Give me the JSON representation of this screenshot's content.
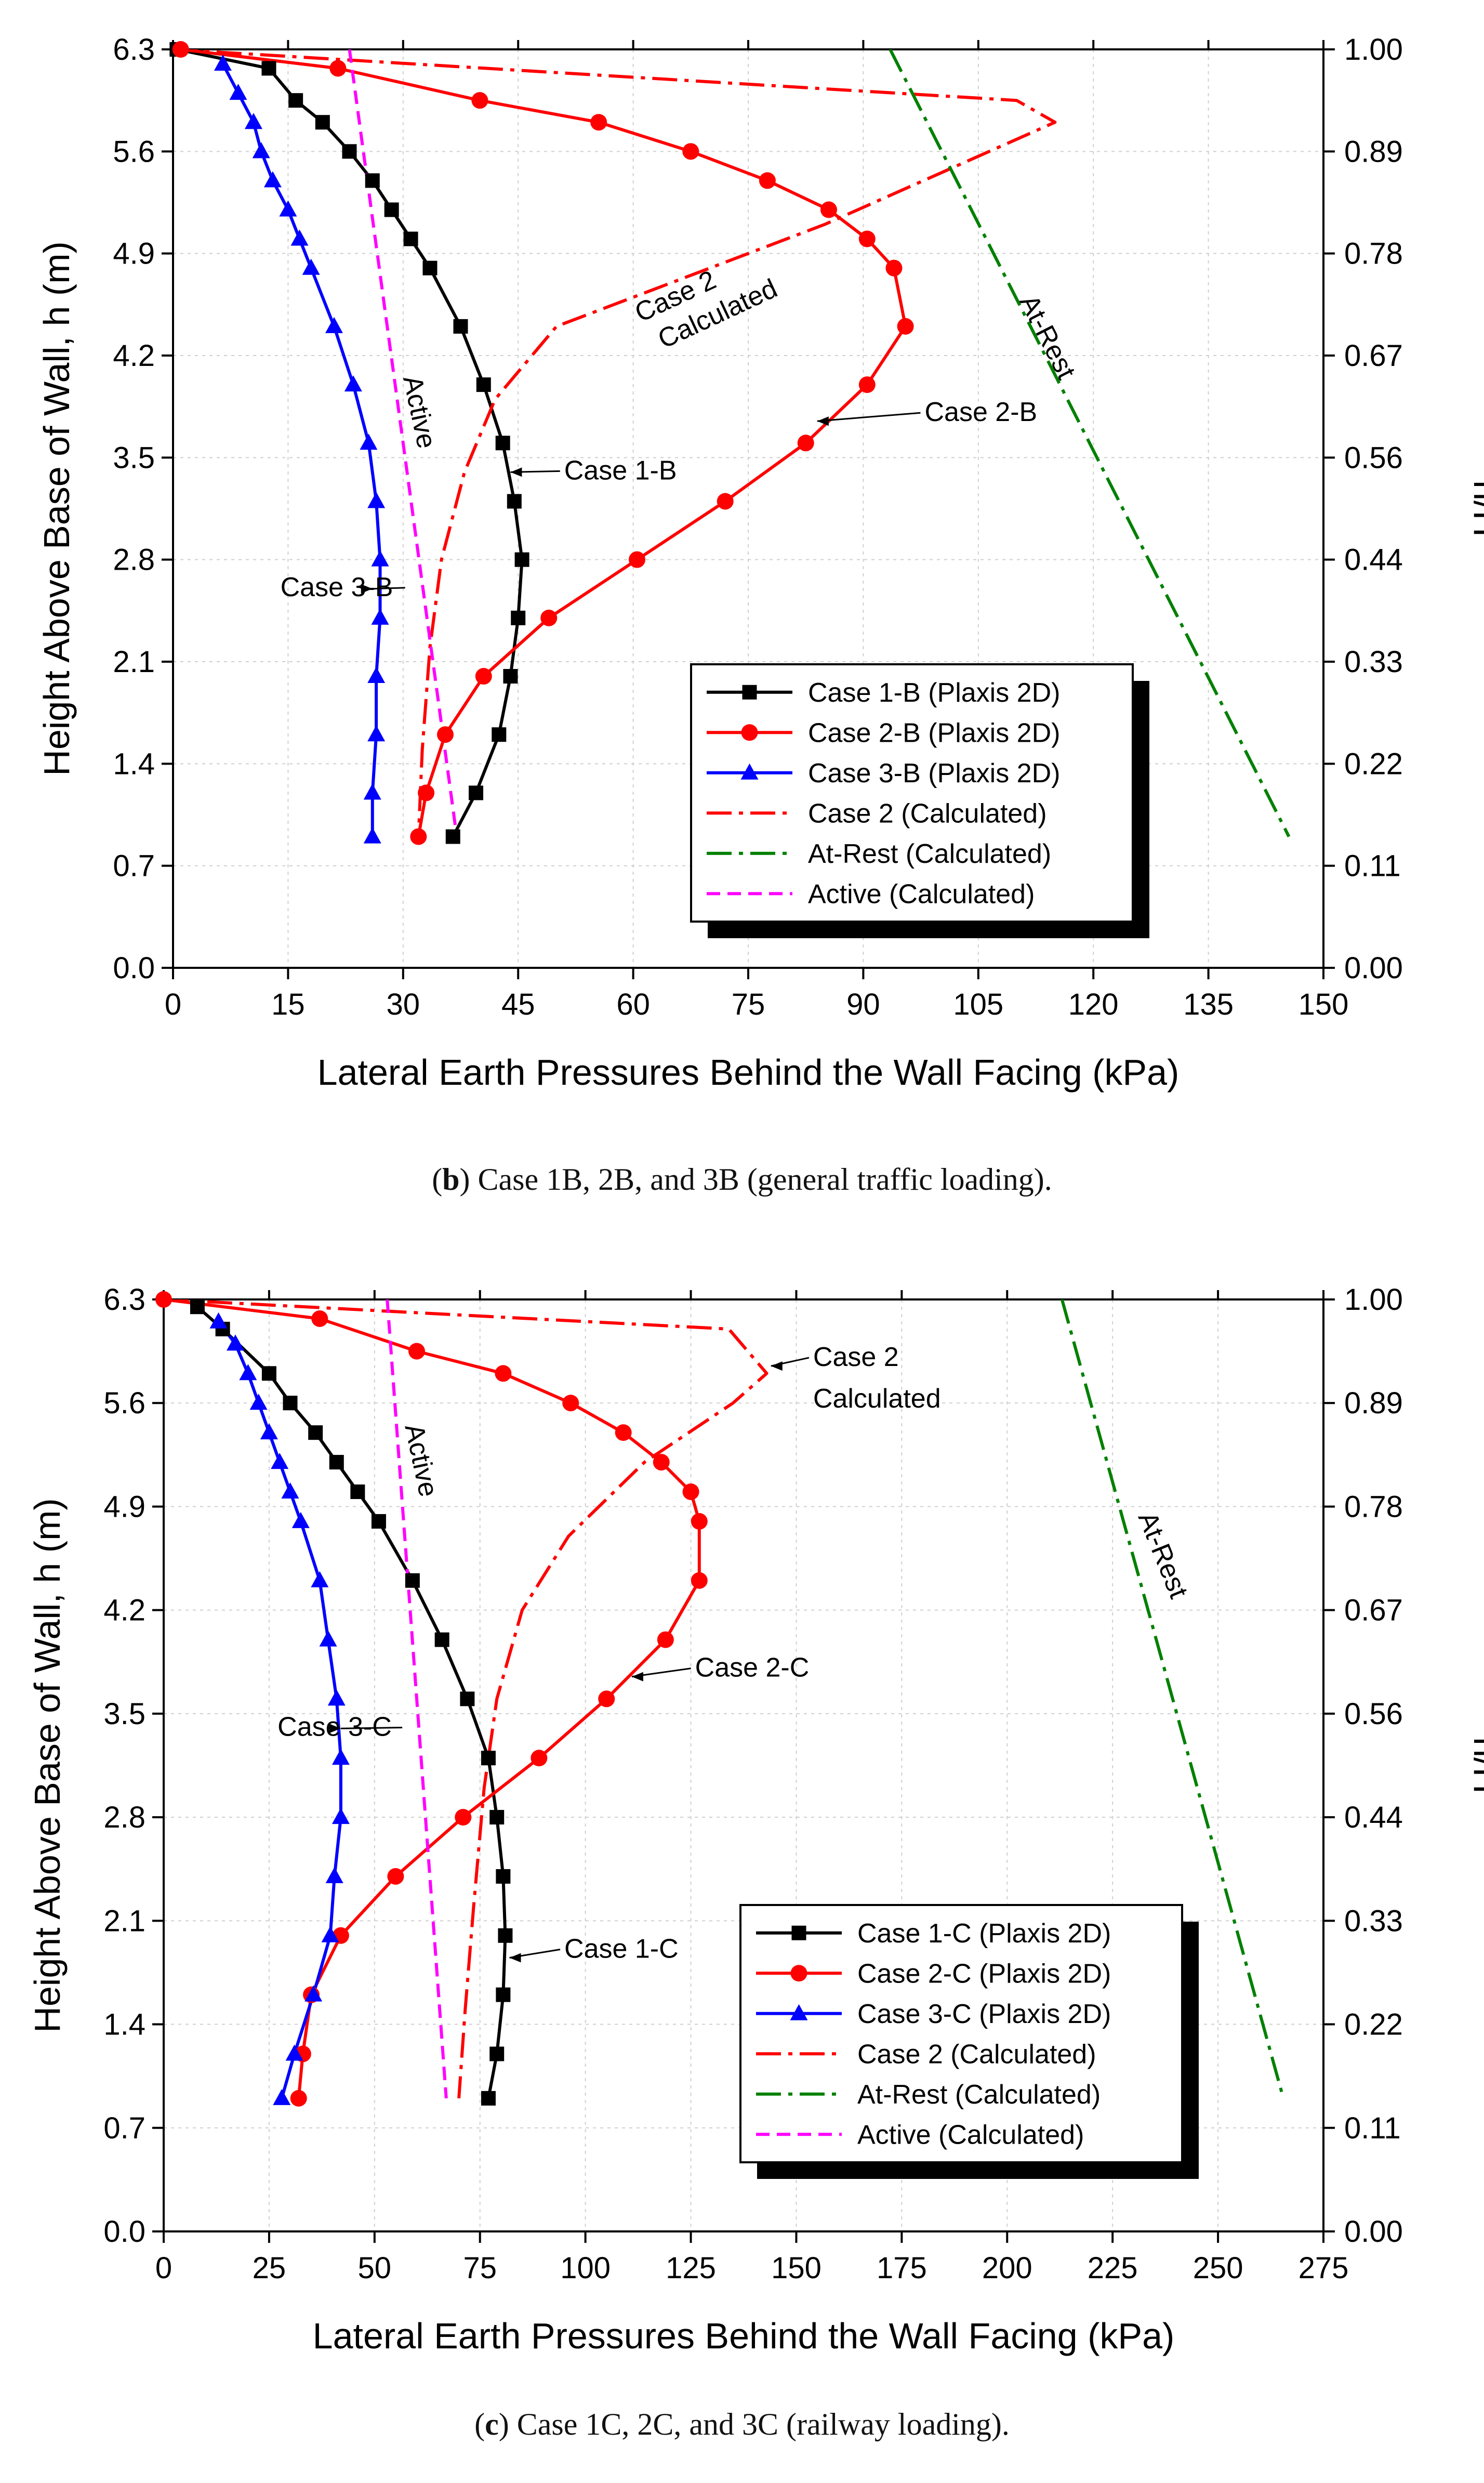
{
  "chart_data": [
    {
      "type": "line",
      "panel": "b",
      "caption": {
        "letter": "b",
        "text": "Case 1B, 2B, and 3B (general traffic loading)."
      },
      "xlabel": "Lateral Earth Pressures Behind the Wall Facing (kPa)",
      "ylabel": "Height Above Base of Wall, h (m)",
      "y2label": "h/H",
      "xlim": [
        0,
        150
      ],
      "ylim": [
        0,
        6.3
      ],
      "xticks": [
        0,
        15,
        30,
        45,
        60,
        75,
        90,
        105,
        120,
        135,
        150
      ],
      "yticks": [
        0.0,
        0.7,
        1.4,
        2.1,
        2.8,
        3.5,
        4.2,
        4.9,
        5.6,
        6.3
      ],
      "ytick_labels": [
        "0.0",
        "0.7",
        "1.4",
        "2.1",
        "2.8",
        "3.5",
        "4.2",
        "4.9",
        "5.6",
        "6.3"
      ],
      "y2tick_labels": [
        "0.00",
        "0.11",
        "0.22",
        "0.33",
        "0.44",
        "0.56",
        "0.67",
        "0.78",
        "0.89",
        "1.00"
      ],
      "series": [
        {
          "name": "Case 1-B (Plaxis 2D)",
          "color": "#000000",
          "style": "solid",
          "marker": "square",
          "points": [
            [
              0.5,
              6.3
            ],
            [
              12.5,
              6.17
            ],
            [
              16,
              5.95
            ],
            [
              19.5,
              5.8
            ],
            [
              23,
              5.6
            ],
            [
              26,
              5.4
            ],
            [
              28.5,
              5.2
            ],
            [
              31,
              5.0
            ],
            [
              33.5,
              4.8
            ],
            [
              37.5,
              4.4
            ],
            [
              40.5,
              4.0
            ],
            [
              43,
              3.6
            ],
            [
              44.5,
              3.2
            ],
            [
              45.5,
              2.8
            ],
            [
              45,
              2.4
            ],
            [
              44,
              2.0
            ],
            [
              42.5,
              1.6
            ],
            [
              39.5,
              1.2
            ],
            [
              36.5,
              0.9
            ]
          ]
        },
        {
          "name": "Case 2-B (Plaxis 2D)",
          "color": "#ff0000",
          "style": "solid",
          "marker": "circle",
          "points": [
            [
              1,
              6.3
            ],
            [
              21.5,
              6.17
            ],
            [
              40,
              5.95
            ],
            [
              55.5,
              5.8
            ],
            [
              67.5,
              5.6
            ],
            [
              77.5,
              5.4
            ],
            [
              85.5,
              5.2
            ],
            [
              90.5,
              5.0
            ],
            [
              94,
              4.8
            ],
            [
              95.5,
              4.4
            ],
            [
              90.5,
              4.0
            ],
            [
              82.5,
              3.6
            ],
            [
              72,
              3.2
            ],
            [
              60.5,
              2.8
            ],
            [
              49,
              2.4
            ],
            [
              40.5,
              2.0
            ],
            [
              35.5,
              1.6
            ],
            [
              33,
              1.2
            ],
            [
              32,
              0.9
            ]
          ]
        },
        {
          "name": "Case 3-B (Plaxis 2D)",
          "color": "#0000ff",
          "style": "solid",
          "marker": "triangle",
          "points": [
            [
              6.5,
              6.2
            ],
            [
              8.5,
              6.0
            ],
            [
              10.5,
              5.8
            ],
            [
              11.5,
              5.6
            ],
            [
              13,
              5.4
            ],
            [
              15,
              5.2
            ],
            [
              16.5,
              5.0
            ],
            [
              18,
              4.8
            ],
            [
              21,
              4.4
            ],
            [
              23.5,
              4.0
            ],
            [
              25.5,
              3.6
            ],
            [
              26.5,
              3.2
            ],
            [
              27,
              2.8
            ],
            [
              27,
              2.4
            ],
            [
              26.5,
              2.0
            ],
            [
              26.5,
              1.6
            ],
            [
              26,
              1.2
            ],
            [
              26,
              0.9
            ]
          ]
        },
        {
          "name": "Case 2 (Calculated)",
          "color": "#ff0000",
          "style": "dashdot",
          "marker": "none",
          "points": [
            [
              0,
              6.3
            ],
            [
              110,
              5.95
            ],
            [
              115,
              5.8
            ],
            [
              85,
              5.1
            ],
            [
              65,
              4.7
            ],
            [
              50,
              4.4
            ],
            [
              42,
              3.9
            ],
            [
              38,
              3.4
            ],
            [
              35,
              2.8
            ],
            [
              33.5,
              2.2
            ],
            [
              32.5,
              1.5
            ],
            [
              32,
              0.9
            ]
          ]
        },
        {
          "name": "At-Rest (Calculated)",
          "color": "#008000",
          "style": "dashdot",
          "marker": "none",
          "points": [
            [
              93.5,
              6.3
            ],
            [
              145.5,
              0.9
            ]
          ]
        },
        {
          "name": "Active (Calculated)",
          "color": "#ff00ff",
          "style": "dashed",
          "marker": "none",
          "points": [
            [
              23,
              6.3
            ],
            [
              37,
              0.9
            ]
          ]
        }
      ],
      "annotations": [
        {
          "text": "Case 2",
          "x": 66,
          "y": 4.55,
          "rotation": -25
        },
        {
          "text": "Calculated",
          "x": 71.5,
          "y": 4.43,
          "rotation": -25
        },
        {
          "text": "At-Rest",
          "x": 113,
          "y": 4.3,
          "rotation": 63
        },
        {
          "text": "Active",
          "x": 31,
          "y": 3.8,
          "rotation": 78
        },
        {
          "text": "Case 1-B",
          "x": 51,
          "y": 3.35,
          "arrow_to": [
            44,
            3.4
          ]
        },
        {
          "text": "Case 2-B",
          "x": 98,
          "y": 3.75,
          "arrow_to": [
            84,
            3.75
          ]
        },
        {
          "text": "Case 3-B",
          "x": 14,
          "y": 2.55,
          "arrow_to": [
            26,
            2.6
          ]
        }
      ],
      "legend_position": "lower-right"
    },
    {
      "type": "line",
      "panel": "c",
      "caption": {
        "letter": "c",
        "text": "Case 1C, 2C, and 3C (railway loading)."
      },
      "xlabel": "Lateral Earth Pressures Behind the Wall Facing (kPa)",
      "ylabel": "Height Above Base of Wall, h (m)",
      "y2label": "h/H",
      "xlim": [
        0,
        275
      ],
      "ylim": [
        0,
        6.3
      ],
      "xticks": [
        0,
        25,
        50,
        75,
        100,
        125,
        150,
        175,
        200,
        225,
        250,
        275
      ],
      "yticks": [
        0.0,
        0.7,
        1.4,
        2.1,
        2.8,
        3.5,
        4.2,
        4.9,
        5.6,
        6.3
      ],
      "ytick_labels": [
        "0.0",
        "0.7",
        "1.4",
        "2.1",
        "2.8",
        "3.5",
        "4.2",
        "4.9",
        "5.6",
        "6.3"
      ],
      "y2tick_labels": [
        "0.00",
        "0.11",
        "0.22",
        "0.33",
        "0.44",
        "0.56",
        "0.67",
        "0.78",
        "0.89",
        "1.00"
      ],
      "series": [
        {
          "name": "Case 1-C (Plaxis 2D)",
          "color": "#000000",
          "style": "solid",
          "marker": "square",
          "points": [
            [
              8,
              6.25
            ],
            [
              14,
              6.1
            ],
            [
              25,
              5.8
            ],
            [
              30,
              5.6
            ],
            [
              36,
              5.4
            ],
            [
              41,
              5.2
            ],
            [
              46,
              5.0
            ],
            [
              51,
              4.8
            ],
            [
              59,
              4.4
            ],
            [
              66,
              4.0
            ],
            [
              72,
              3.6
            ],
            [
              77,
              3.2
            ],
            [
              79,
              2.8
            ],
            [
              80.5,
              2.4
            ],
            [
              81,
              2.0
            ],
            [
              80.5,
              1.6
            ],
            [
              79,
              1.2
            ],
            [
              77,
              0.9
            ]
          ]
        },
        {
          "name": "Case 2-C (Plaxis 2D)",
          "color": "#ff0000",
          "style": "solid",
          "marker": "circle",
          "points": [
            [
              0,
              6.3
            ],
            [
              37,
              6.17
            ],
            [
              60,
              5.95
            ],
            [
              80.5,
              5.8
            ],
            [
              96.5,
              5.6
            ],
            [
              109,
              5.4
            ],
            [
              118,
              5.2
            ],
            [
              125,
              5.0
            ],
            [
              127,
              4.8
            ],
            [
              127,
              4.4
            ],
            [
              119,
              4.0
            ],
            [
              105,
              3.6
            ],
            [
              89,
              3.2
            ],
            [
              71,
              2.8
            ],
            [
              55,
              2.4
            ],
            [
              42,
              2.0
            ],
            [
              35,
              1.6
            ],
            [
              33,
              1.2
            ],
            [
              32,
              0.9
            ]
          ]
        },
        {
          "name": "Case 3-C (Plaxis 2D)",
          "color": "#0000ff",
          "style": "solid",
          "marker": "triangle",
          "points": [
            [
              13,
              6.15
            ],
            [
              17,
              6.0
            ],
            [
              20,
              5.8
            ],
            [
              22.5,
              5.6
            ],
            [
              25,
              5.4
            ],
            [
              27.5,
              5.2
            ],
            [
              30,
              5.0
            ],
            [
              32.5,
              4.8
            ],
            [
              37,
              4.4
            ],
            [
              39,
              4.0
            ],
            [
              41,
              3.6
            ],
            [
              42,
              3.2
            ],
            [
              42,
              2.8
            ],
            [
              40.5,
              2.4
            ],
            [
              39.5,
              2.0
            ],
            [
              35.5,
              1.6
            ],
            [
              31,
              1.2
            ],
            [
              28,
              0.9
            ]
          ]
        },
        {
          "name": "Case 2 (Calculated)",
          "color": "#ff0000",
          "style": "dashdot",
          "marker": "none",
          "points": [
            [
              0,
              6.3
            ],
            [
              134,
              6.1
            ],
            [
              143,
              5.8
            ],
            [
              135,
              5.6
            ],
            [
              114,
              5.2
            ],
            [
              96,
              4.7
            ],
            [
              85,
              4.2
            ],
            [
              79,
              3.6
            ],
            [
              76,
              3.0
            ],
            [
              73.5,
              2.2
            ],
            [
              71.5,
              1.5
            ],
            [
              70,
              0.9
            ]
          ]
        },
        {
          "name": "At-Rest (Calculated)",
          "color": "#008000",
          "style": "dashdot",
          "marker": "none",
          "points": [
            [
              213,
              6.3
            ],
            [
              265.5,
              0.9
            ]
          ]
        },
        {
          "name": "Active (Calculated)",
          "color": "#ff00ff",
          "style": "dashed",
          "marker": "none",
          "points": [
            [
              53,
              6.3
            ],
            [
              67,
              0.9
            ]
          ]
        }
      ],
      "annotations": [
        {
          "text": "Case 2",
          "x": 154,
          "y": 5.85,
          "arrow_to": [
            144,
            5.85
          ]
        },
        {
          "text": "Calculated",
          "x": 154,
          "y": 5.57
        },
        {
          "text": "At-Rest",
          "x": 235,
          "y": 4.55,
          "rotation": 68
        },
        {
          "text": "Active",
          "x": 59,
          "y": 5.2,
          "rotation": 78
        },
        {
          "text": "Case 1-C",
          "x": 95,
          "y": 1.85,
          "arrow_to": [
            82,
            1.85
          ]
        },
        {
          "text": "Case 2-C",
          "x": 126,
          "y": 3.75,
          "arrow_to": [
            111,
            3.75
          ]
        },
        {
          "text": "Case 3-C",
          "x": 27,
          "y": 3.35,
          "arrow_to": [
            42,
            3.4
          ]
        }
      ],
      "legend_position": "lower-right"
    }
  ]
}
